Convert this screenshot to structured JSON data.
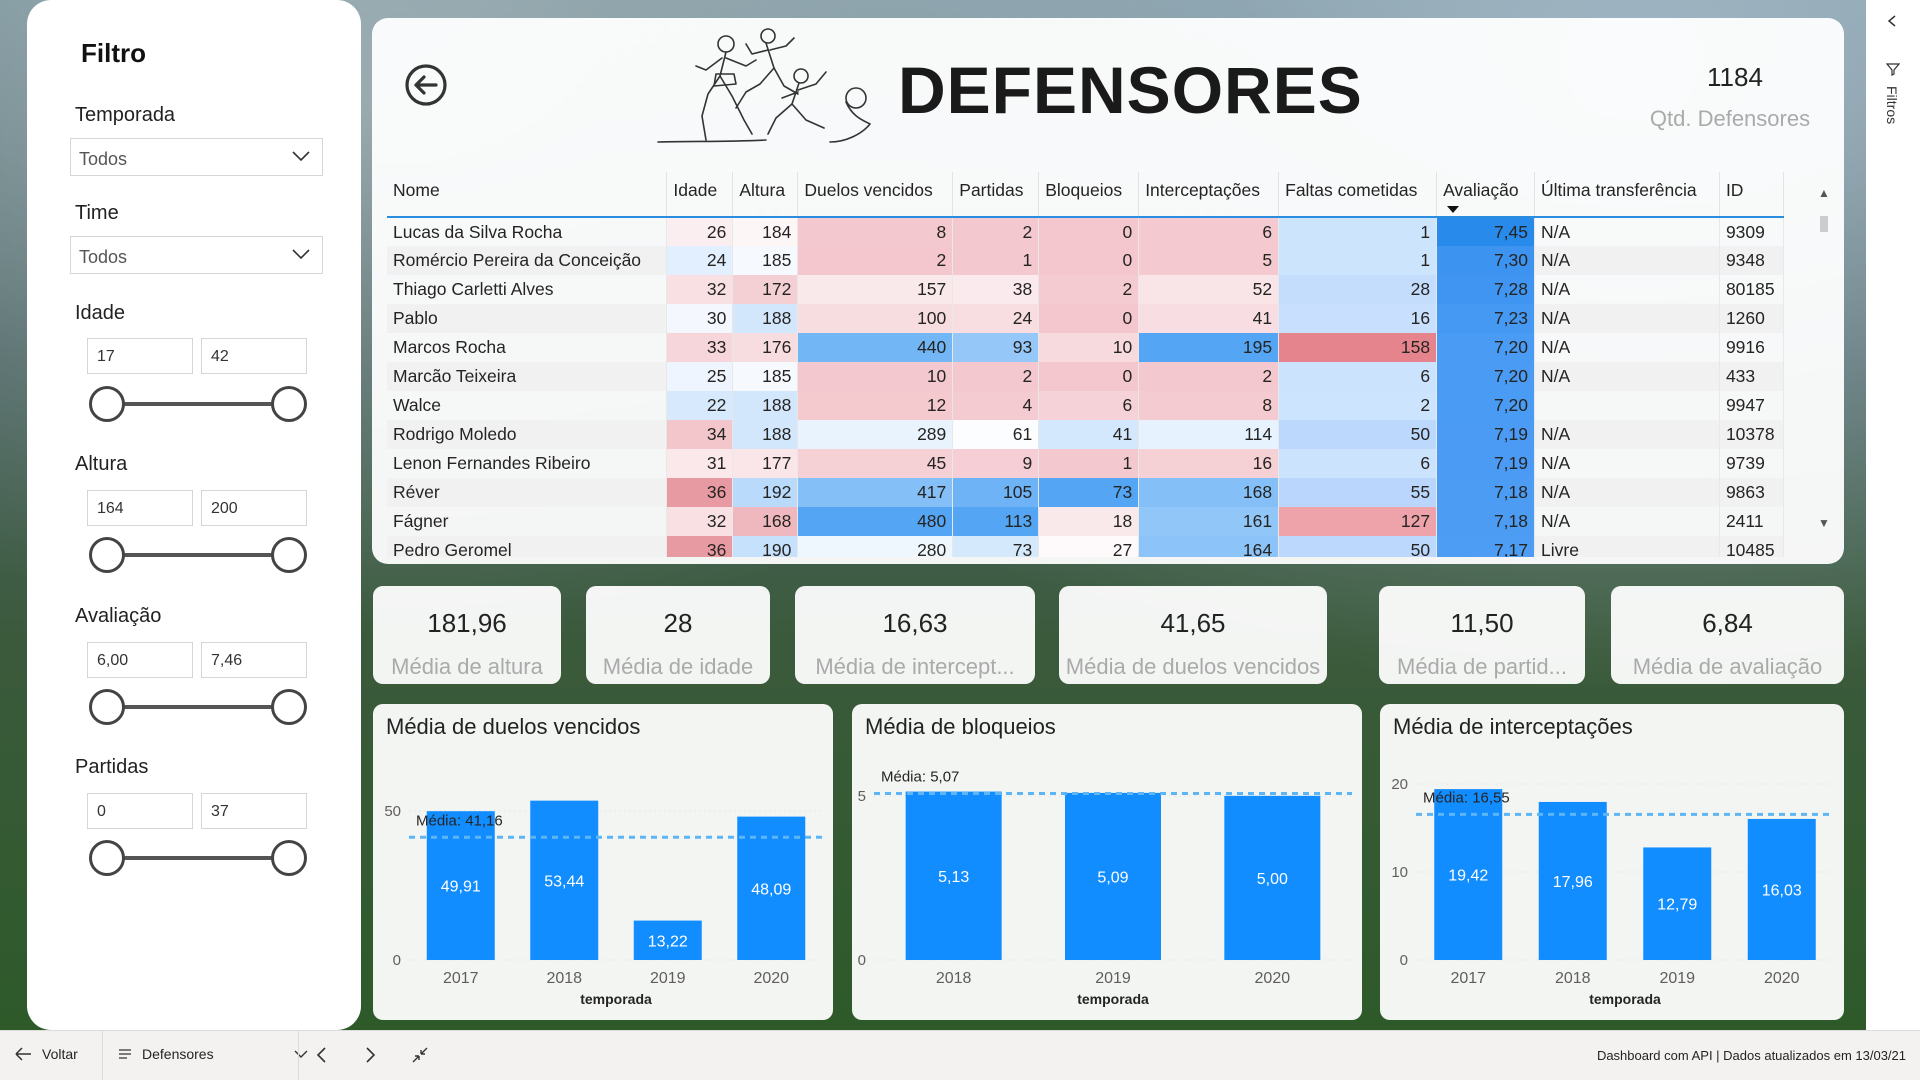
{
  "filter": {
    "title": "Filtro",
    "season": {
      "label": "Temporada",
      "value": "Todos"
    },
    "team": {
      "label": "Time",
      "value": "Todos"
    },
    "age": {
      "label": "Idade",
      "min": "17",
      "max": "42"
    },
    "height": {
      "label": "Altura",
      "min": "164",
      "max": "200"
    },
    "rating": {
      "label": "Avaliação",
      "min": "6,00",
      "max": "7,46"
    },
    "matches": {
      "label": "Partidas",
      "min": "0",
      "max": "37"
    }
  },
  "header": {
    "title": "DEFENSORES",
    "count_value": "1184",
    "count_label": "Qtd. Defensores"
  },
  "table": {
    "columns": [
      "Nome",
      "Idade",
      "Altura",
      "Duelos vencidos",
      "Partidas",
      "Bloqueios",
      "Interceptações",
      "Faltas cometidas",
      "Avaliação",
      "Última transferência",
      "ID"
    ],
    "rows": [
      [
        "Lucas da Silva Rocha",
        "26",
        "184",
        "8",
        "2",
        "0",
        "6",
        "1",
        "7,45",
        "N/A",
        "9309"
      ],
      [
        "Romércio Pereira da Conceição",
        "24",
        "185",
        "2",
        "1",
        "0",
        "5",
        "1",
        "7,30",
        "N/A",
        "9348"
      ],
      [
        "Thiago Carletti Alves",
        "32",
        "172",
        "157",
        "38",
        "2",
        "52",
        "28",
        "7,28",
        "N/A",
        "80185"
      ],
      [
        "Pablo",
        "30",
        "188",
        "100",
        "24",
        "0",
        "41",
        "16",
        "7,23",
        "N/A",
        "1260"
      ],
      [
        "Marcos Rocha",
        "33",
        "176",
        "440",
        "93",
        "10",
        "195",
        "158",
        "7,20",
        "N/A",
        "9916"
      ],
      [
        "Marcão Teixeira",
        "25",
        "185",
        "10",
        "2",
        "0",
        "2",
        "6",
        "7,20",
        "N/A",
        "433"
      ],
      [
        "Walce",
        "22",
        "188",
        "12",
        "4",
        "6",
        "8",
        "2",
        "7,20",
        "",
        "9947"
      ],
      [
        "Rodrigo Moledo",
        "34",
        "188",
        "289",
        "61",
        "41",
        "114",
        "50",
        "7,19",
        "N/A",
        "10378"
      ],
      [
        "Lenon Fernandes Ribeiro",
        "31",
        "177",
        "45",
        "9",
        "1",
        "16",
        "6",
        "7,19",
        "N/A",
        "9739"
      ],
      [
        "Réver",
        "36",
        "192",
        "417",
        "105",
        "73",
        "168",
        "55",
        "7,18",
        "N/A",
        "9863"
      ],
      [
        "Fágner",
        "32",
        "168",
        "480",
        "113",
        "18",
        "161",
        "127",
        "7,18",
        "N/A",
        "2411"
      ],
      [
        "Pedro Geromel",
        "36",
        "190",
        "280",
        "73",
        "27",
        "164",
        "50",
        "7,17",
        "Livre",
        "10485"
      ]
    ]
  },
  "kpis": [
    {
      "value": "181,96",
      "label": "Média de altura"
    },
    {
      "value": "28",
      "label": "Média de idade"
    },
    {
      "value": "16,63",
      "label": "Média de intercept..."
    },
    {
      "value": "41,65",
      "label": "Média de duelos vencidos"
    },
    {
      "value": "11,50",
      "label": "Média de partid..."
    },
    {
      "value": "6,84",
      "label": "Média de avaliação"
    }
  ],
  "chart_data": [
    {
      "type": "bar",
      "title": "Média de duelos vencidos",
      "xlabel": "temporada",
      "categories": [
        "2017",
        "2018",
        "2019",
        "2020"
      ],
      "values": [
        49.91,
        53.44,
        13.22,
        48.09
      ],
      "value_labels": [
        "49,91",
        "53,44",
        "13,22",
        "48,09"
      ],
      "yticks": [
        "0",
        "50"
      ],
      "ylim": [
        0,
        55
      ],
      "average": 41.16,
      "average_label": "Média: 41,16"
    },
    {
      "type": "bar",
      "title": "Média de bloqueios",
      "xlabel": "temporada",
      "categories": [
        "2018",
        "2019",
        "2020"
      ],
      "values": [
        5.13,
        5.09,
        5.0
      ],
      "value_labels": [
        "5,13",
        "5,09",
        "5,00"
      ],
      "yticks": [
        "0",
        "5"
      ],
      "ylim": [
        0,
        5.3
      ],
      "average": 5.07,
      "average_label": "Média: 5,07"
    },
    {
      "type": "bar",
      "title": "Média de interceptações",
      "xlabel": "temporada",
      "categories": [
        "2017",
        "2018",
        "2019",
        "2020"
      ],
      "values": [
        19.42,
        17.96,
        12.79,
        16.03
      ],
      "value_labels": [
        "19,42",
        "17,96",
        "12,79",
        "16,03"
      ],
      "yticks": [
        "0",
        "10",
        "20"
      ],
      "ylim": [
        0,
        20
      ],
      "average": 16.55,
      "average_label": "Média: 16,55"
    }
  ],
  "sidebar": {
    "filters_label": "Filtros"
  },
  "bottom_bar": {
    "back_label": "Voltar",
    "page_label": "Defensores",
    "status": "Dashboard com API  |  Dados atualizados em 13/03/21"
  },
  "colors": {
    "bar": "#118dff",
    "avg_line": "#5eb5f4",
    "cell_red": "#e47b86",
    "cell_blue": "#3d9bf2"
  }
}
